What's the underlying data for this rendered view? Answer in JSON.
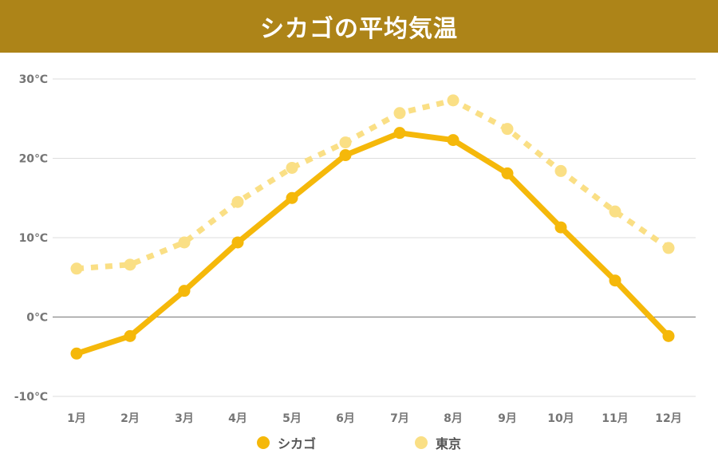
{
  "header": {
    "title": "シカゴの平均気温"
  },
  "colors": {
    "header_bg": "#ad8418",
    "chicago": "#f5b80a",
    "tokyo": "#fadf85",
    "grid": "#dddddd",
    "zero_line": "#8a8a8a"
  },
  "chart_data": {
    "type": "line",
    "categories": [
      "1月",
      "2月",
      "3月",
      "4月",
      "5月",
      "6月",
      "7月",
      "8月",
      "9月",
      "10月",
      "11月",
      "12月"
    ],
    "series": [
      {
        "name": "シカゴ",
        "color": "#f5b80a",
        "style": "solid",
        "values": [
          -4.6,
          -2.4,
          3.3,
          9.4,
          15.0,
          20.4,
          23.2,
          22.3,
          18.1,
          11.3,
          4.6,
          -2.4
        ]
      },
      {
        "name": "東京",
        "color": "#fadf85",
        "style": "dotted",
        "values": [
          6.1,
          6.6,
          9.4,
          14.5,
          18.8,
          22.0,
          25.7,
          27.3,
          23.7,
          18.4,
          13.3,
          8.7
        ]
      }
    ],
    "y_ticks": [
      "30℃",
      "20℃",
      "10℃",
      "0℃",
      "-10℃"
    ],
    "y_tick_values": [
      30,
      20,
      10,
      0,
      -10
    ],
    "ylim": [
      -10,
      30
    ],
    "grid": true,
    "legend_position": "bottom"
  },
  "legend": {
    "items": [
      {
        "label": "シカゴ"
      },
      {
        "label": "東京"
      }
    ]
  }
}
